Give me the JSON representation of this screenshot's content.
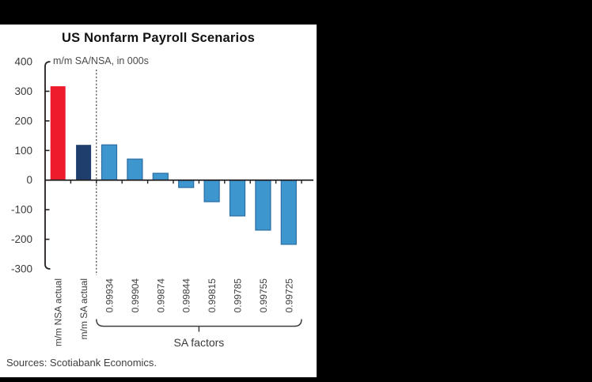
{
  "window": {
    "background_color": "#000000",
    "panel_color": "#FFFFFF"
  },
  "chart": {
    "title": "US Nonfarm Payroll Scenarios",
    "subtitle": "m/m SA/NSA, in 000s",
    "source_note": "Sources: Scotiabank Economics."
  },
  "chart_data": {
    "type": "bar",
    "title": "US Nonfarm Payroll Scenarios",
    "subtitle": "m/m SA/NSA, in 000s",
    "xlabel": "",
    "ylabel": "",
    "ylim": [
      -300,
      400
    ],
    "yticks": [
      400,
      300,
      200,
      100,
      0,
      -100,
      -200,
      -300
    ],
    "grid": false,
    "legend": false,
    "categories": [
      "m/m NSA actual",
      "m/m SA actual",
      "0.99934",
      "0.99904",
      "0.99874",
      "0.99844",
      "0.99815",
      "0.99785",
      "0.99755",
      "0.99725"
    ],
    "values": [
      317,
      119,
      119,
      71,
      23,
      -25,
      -73,
      -121,
      -169,
      -217
    ],
    "bar_fills": [
      "#EC1C2D",
      "#1F3E6E",
      "#3E96CF",
      "#3E96CF",
      "#3E96CF",
      "#3E96CF",
      "#3E96CF",
      "#3E96CF",
      "#3E96CF",
      "#3E96CF"
    ],
    "bar_strokes": [
      "",
      "",
      "#2A6DA3",
      "#2A6DA3",
      "#2A6DA3",
      "#2A6DA3",
      "#2A6DA3",
      "#2A6DA3",
      "#2A6DA3",
      "#2A6DA3"
    ],
    "separator": {
      "style": "dashed",
      "after_category_index": 2
    },
    "bracket": {
      "label": "SA factors",
      "start_index": 2,
      "end_index": 9
    },
    "colors": {
      "actual_nsa_bar": "#EC1C2D",
      "actual_sa_bar": "#1F3E6E",
      "scenario_bar_fill": "#3E96CF",
      "scenario_bar_stroke": "#2A6DA3",
      "axis": "#231F20",
      "tick_label_text": "#3A3A3A",
      "separator_line": "#2B2B2B"
    }
  }
}
